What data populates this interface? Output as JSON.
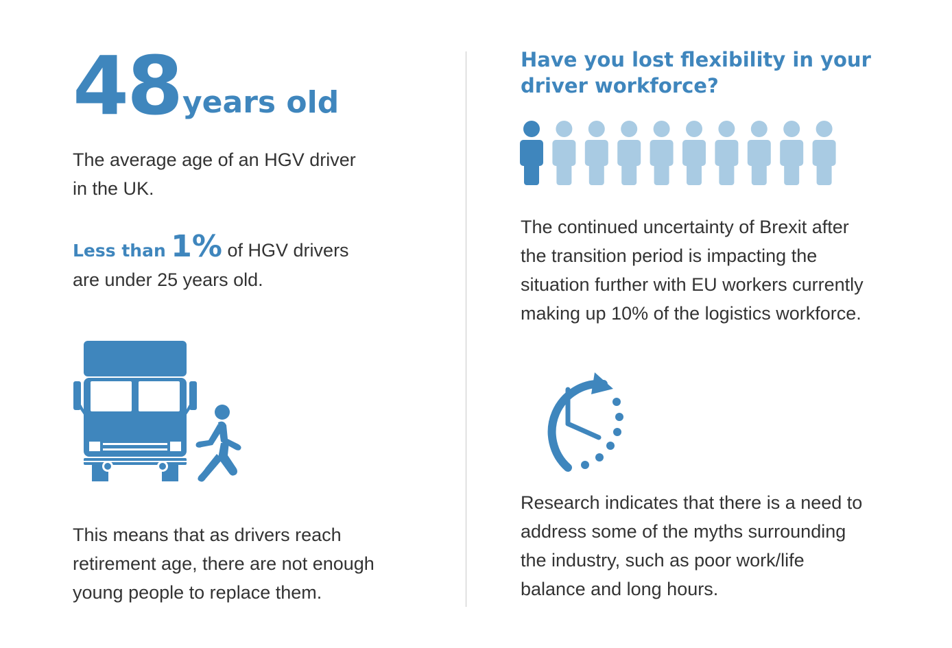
{
  "left": {
    "age_number": "48",
    "age_unit": "years old",
    "age_desc_line1": "The average age of an HGV driver",
    "age_desc_line2": "in the UK.",
    "stat_lead": "Less than",
    "stat_percent": "1%",
    "stat_tail": "of HGV drivers",
    "stat_line2": "are under 25 years old.",
    "truck_icon": "truck-with-pedestrian-icon",
    "retire_line1": "This means that as drivers reach",
    "retire_line2": "retirement age, there are not enough",
    "retire_line3": "young people to replace them."
  },
  "right": {
    "heading_line1": "Have you lost flexibility in your",
    "heading_line2": "driver workforce?",
    "people_icon": "person-icon",
    "people_total": 10,
    "people_highlighted": 1,
    "brexit_line1": "The continued uncertainty of Brexit after",
    "brexit_line2": "the transition period is impacting the",
    "brexit_line3": "situation further with EU workers currently",
    "brexit_line4": "making up 10% of the logistics workforce.",
    "clock_icon": "clock-icon",
    "research_line1": "Research indicates that there is a need to",
    "research_line2": "address some of the myths surrounding",
    "research_line3": "the industry, such as poor work/life",
    "research_line4": "balance and long hours."
  },
  "colors": {
    "accent": "#3f86bd",
    "accent_light": "#a9cbe3",
    "text": "#333333",
    "divider": "#c8c8c8"
  }
}
